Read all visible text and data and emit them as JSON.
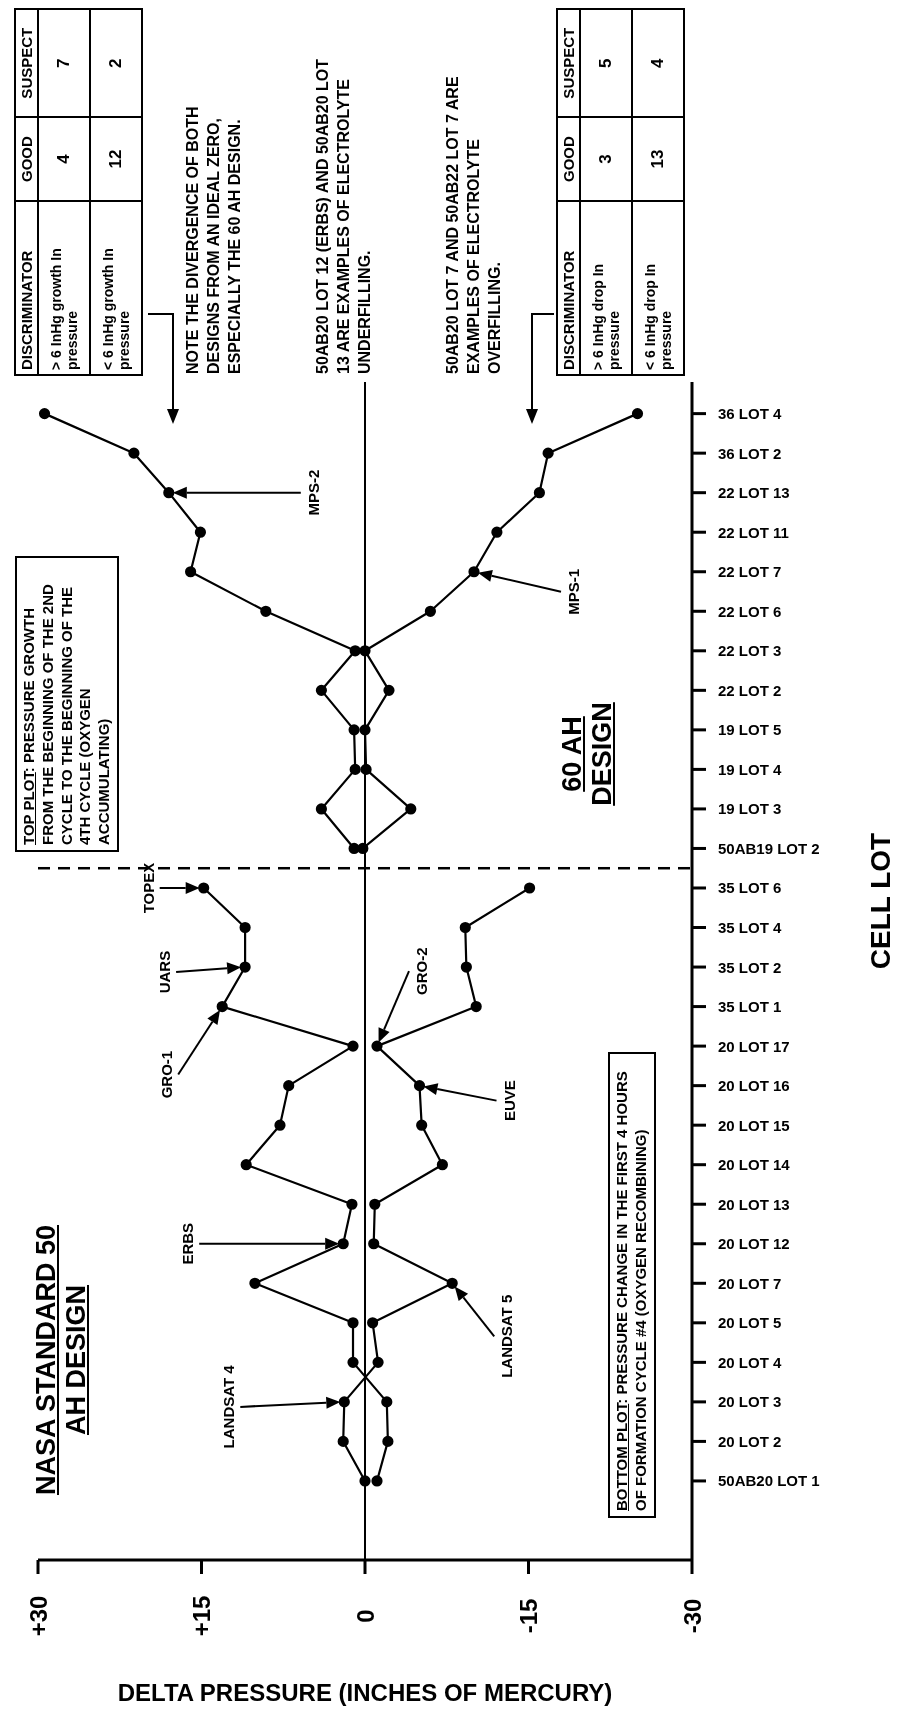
{
  "chart_data": {
    "type": "line",
    "orientation": "horizontal",
    "xlabel": "DELTA PRESSURE (INCHES OF MERCURY)",
    "ylabel": "CELL LOT",
    "categories": [
      "36 LOT 4",
      "36 LOT 2",
      "22 LOT 13",
      "22 LOT 11",
      "22 LOT 7",
      "22 LOT 6",
      "22 LOT 3",
      "22 LOT 2",
      "19 LOT 5",
      "19 LOT 4",
      "19 LOT 3",
      "50AB19 LOT 2",
      "35 LOT 6",
      "35 LOT 4",
      "35 LOT 2",
      "35 LOT 1",
      "20 LOT 17",
      "20 LOT 16",
      "20 LOT 15",
      "20 LOT 14",
      "20 LOT 13",
      "20 LOT 12",
      "20 LOT 7",
      "20 LOT 5",
      "20 LOT 4",
      "20 LOT 3",
      "20 LOT 2",
      "50AB20 LOT 1"
    ],
    "series": [
      {
        "color": "#000000",
        "values": [
          null,
          null,
          null,
          null,
          null,
          null,
          null,
          null,
          null,
          null,
          null,
          null,
          14.8,
          11.0,
          11.0,
          13.1,
          1.1,
          7.0,
          7.8,
          10.9,
          1.2,
          2.0,
          10.1,
          1.1,
          1.1,
          -2.0,
          -2.1,
          -1.1
        ]
      },
      {
        "color": "#000000",
        "values": [
          null,
          null,
          null,
          null,
          null,
          null,
          null,
          null,
          null,
          null,
          null,
          null,
          -15.1,
          -9.2,
          -9.3,
          -10.2,
          -1.1,
          -5.0,
          -5.2,
          -7.1,
          -0.9,
          -0.8,
          -8.0,
          -0.7,
          -1.2,
          1.9,
          2.0,
          0.0
        ]
      },
      {
        "color": "#000000",
        "values": [
          29.4,
          21.2,
          18.0,
          15.1,
          16.0,
          9.1,
          0.9,
          4.0,
          1.0,
          0.9,
          4.0,
          1.0,
          null,
          null,
          null,
          null,
          null,
          null,
          null,
          null,
          null,
          null,
          null,
          null,
          null,
          null,
          null,
          null
        ]
      },
      {
        "color": "#000000",
        "values": [
          -25.0,
          -16.8,
          -16.0,
          -12.1,
          -10.0,
          -6.0,
          0.0,
          -2.2,
          0.0,
          -0.1,
          -4.2,
          0.2,
          null,
          null,
          null,
          null,
          null,
          null,
          null,
          null,
          null,
          null,
          null,
          null,
          null,
          null,
          null,
          null
        ]
      }
    ],
    "xlim": [
      30,
      -30
    ],
    "xticks": [
      {
        "value": 30,
        "label": "+30"
      },
      {
        "value": 15,
        "label": "+15"
      },
      {
        "value": 0,
        "label": "0"
      },
      {
        "value": -15,
        "label": "-15"
      },
      {
        "value": -30,
        "label": "-30"
      }
    ],
    "ref_lines": [
      {
        "axis": "x",
        "value": 0,
        "line_style": "solid"
      }
    ],
    "grid": false,
    "legend": false,
    "marker": "circle",
    "annotations": [
      "TOP PLOT: PRESSURE GROWTH FROM THE BEGINNING OF THE 2ND CYCLE TO THE BEGINNING OF THE 4TH CYCLE (OXYGEN ACCUMULATING)",
      "BOTTOM PLOT: PRESSURE CHANGE IN THE FIRST 4 HOURS OF FORMATION CYCLE #4 (OXYGEN RECOMBINING)",
      "NASA STANDARD 50 AH DESIGN",
      "60 AH DESIGN",
      "NOTE THE DIVERGENCE OF BOTH DESIGNS FROM AN IDEAL ZERO, ESPECIALLY THE 60 AH DESIGN.",
      "50AB20 LOT 12 (ERBS) AND 50AB20 LOT 13 ARE EXAMPLES OF ELECTROLYTE UNDERFILLING.",
      "50AB20 LOT 7 AND 50AB22 LOT 7 ARE EXAMPLES OF ELECTROLYTE OVERFILLING.",
      "DISCRIMINATOR",
      "GOOD",
      "SUSPECT",
      "> 6 InHg growth In pressure",
      "4",
      "7",
      "< 6 InHg growth In pressure",
      "12",
      "2",
      "DISCRIMINATOR",
      "GOOD",
      "SUSPECT",
      "> 6 InHg drop In pressure",
      "3",
      "5",
      "< 6 InHg drop In pressure",
      "13",
      "4",
      "TOPEX",
      "UARS",
      "GRO-1",
      "GRO-2",
      "EUVE",
      "ERBS",
      "LANDSAT 4",
      "LANDSAT 5",
      "MPS-2",
      "MPS-1"
    ]
  }
}
